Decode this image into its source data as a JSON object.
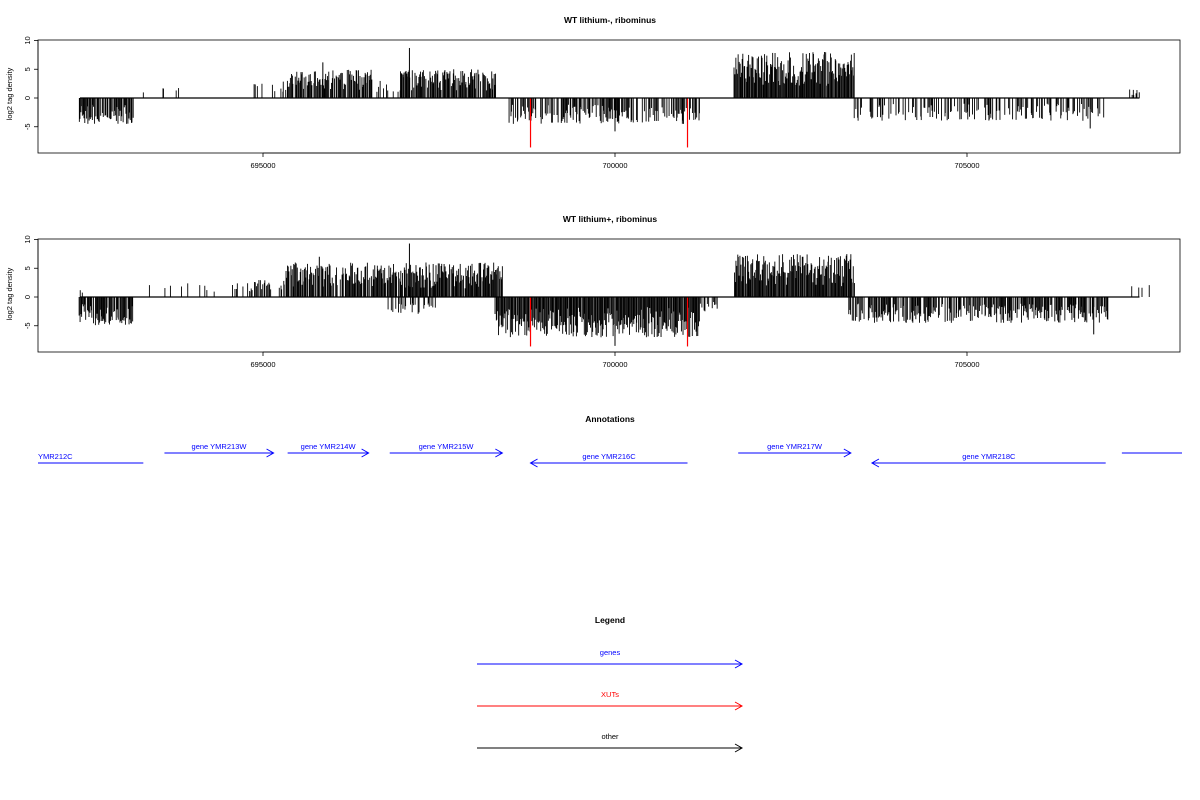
{
  "chart_data": [
    {
      "type": "bar",
      "title": "WT lithium-, ribominus",
      "ylabel": "log2 tag density",
      "xlabel": "",
      "xlim": [
        692100,
        707700
      ],
      "ylim": [
        -9,
        10.2
      ],
      "yticks": [
        -5,
        0,
        5,
        10
      ],
      "xticks": [
        695000,
        700000,
        705000
      ],
      "xtick_labels": [
        "695000",
        "700000",
        "705000"
      ],
      "grid": false,
      "series": [
        {
          "strand": "plus",
          "segments": [
            {
              "start": 693300,
              "end": 693350,
              "density": 0.08,
              "max": 3.5
            },
            {
              "start": 693550,
              "end": 693800,
              "density": 0.08,
              "max": 2
            },
            {
              "start": 694000,
              "end": 694800,
              "density": 0.04,
              "max": 1.5
            },
            {
              "start": 694850,
              "end": 695350,
              "density": 0.25,
              "max": 3
            },
            {
              "start": 695350,
              "end": 696550,
              "density": 0.85,
              "max": 5
            },
            {
              "start": 696550,
              "end": 696950,
              "density": 0.3,
              "max": 3
            },
            {
              "start": 696950,
              "end": 698300,
              "density": 0.9,
              "max": 5
            },
            {
              "start": 701700,
              "end": 703400,
              "density": 1.0,
              "max": 8
            },
            {
              "start": 707300,
              "end": 707450,
              "density": 0.3,
              "max": 1.5
            }
          ],
          "peaks": [
            {
              "x": 697080,
              "y": 8.7
            },
            {
              "x": 695850,
              "y": 6.2
            }
          ]
        },
        {
          "strand": "minus",
          "segments": [
            {
              "start": 692400,
              "end": 693150,
              "density": 0.9,
              "max": 4.5
            },
            {
              "start": 698500,
              "end": 701200,
              "density": 0.6,
              "max": 4.5
            },
            {
              "start": 703400,
              "end": 706950,
              "density": 0.4,
              "max": 4
            }
          ],
          "peaks": [
            {
              "x": 700000,
              "y": -5.8
            },
            {
              "x": 706750,
              "y": -5.3
            }
          ]
        }
      ],
      "xut_marks": [
        {
          "x": 698800,
          "y": -8.6
        },
        {
          "x": 701030,
          "y": -8.6
        }
      ]
    },
    {
      "type": "bar",
      "title": "WT lithium+, ribominus",
      "ylabel": "log2 tag density",
      "xlabel": "",
      "xlim": [
        692100,
        707700
      ],
      "ylim": [
        -9,
        10.2
      ],
      "yticks": [
        -5,
        0,
        5,
        10
      ],
      "xticks": [
        695000,
        700000,
        705000
      ],
      "xtick_labels": [
        "695000",
        "700000",
        "705000"
      ],
      "grid": false,
      "series": [
        {
          "strand": "plus",
          "segments": [
            {
              "start": 692400,
              "end": 692450,
              "density": 0.5,
              "max": 1.5
            },
            {
              "start": 693350,
              "end": 694800,
              "density": 0.12,
              "max": 2.5
            },
            {
              "start": 694800,
              "end": 695300,
              "density": 0.35,
              "max": 3
            },
            {
              "start": 695300,
              "end": 696650,
              "density": 0.85,
              "max": 6
            },
            {
              "start": 696650,
              "end": 698400,
              "density": 0.95,
              "max": 6
            },
            {
              "start": 701700,
              "end": 703400,
              "density": 1.0,
              "max": 7.5
            },
            {
              "start": 707300,
              "end": 707600,
              "density": 0.3,
              "max": 3.5
            }
          ],
          "peaks": [
            {
              "x": 697080,
              "y": 9.3
            },
            {
              "x": 695800,
              "y": 7.0
            }
          ]
        },
        {
          "strand": "minus",
          "segments": [
            {
              "start": 692400,
              "end": 693150,
              "density": 0.9,
              "max": 5
            },
            {
              "start": 696750,
              "end": 697450,
              "density": 0.35,
              "max": 3
            },
            {
              "start": 698300,
              "end": 701200,
              "density": 1.0,
              "max": 7
            },
            {
              "start": 701200,
              "end": 701450,
              "density": 0.4,
              "max": 2.5
            },
            {
              "start": 703300,
              "end": 707000,
              "density": 0.75,
              "max": 4.5
            }
          ],
          "peaks": [
            {
              "x": 700000,
              "y": -8.5
            },
            {
              "x": 706800,
              "y": -6.5
            }
          ]
        }
      ],
      "xut_marks": [
        {
          "x": 698800,
          "y": -8.6
        },
        {
          "x": 701030,
          "y": -8.6
        }
      ]
    }
  ],
  "annotations": {
    "title": "Annotations",
    "color": "#0000ff",
    "genes": [
      {
        "label": "YMR212C",
        "strand": "-",
        "start": 691000,
        "end": 693300
      },
      {
        "label": "gene YMR213W",
        "strand": "+",
        "start": 693600,
        "end": 695150
      },
      {
        "label": "gene YMR214W",
        "strand": "+",
        "start": 695350,
        "end": 696500
      },
      {
        "label": "gene YMR215W",
        "strand": "+",
        "start": 696800,
        "end": 698400
      },
      {
        "label": "gene YMR216C",
        "strand": "-",
        "start": 698800,
        "end": 701030
      },
      {
        "label": "gene YMR217W",
        "strand": "+",
        "start": 701750,
        "end": 703350
      },
      {
        "label": "gene YMR218C",
        "strand": "-",
        "start": 703650,
        "end": 706970
      },
      {
        "label": "",
        "strand": "+",
        "start": 707200,
        "end": 709500
      }
    ]
  },
  "legend": {
    "title": "Legend",
    "items": [
      {
        "label": "genes",
        "color": "#0000ff"
      },
      {
        "label": "XUTs",
        "color": "#ff0000"
      },
      {
        "label": "other",
        "color": "#000000"
      }
    ]
  }
}
